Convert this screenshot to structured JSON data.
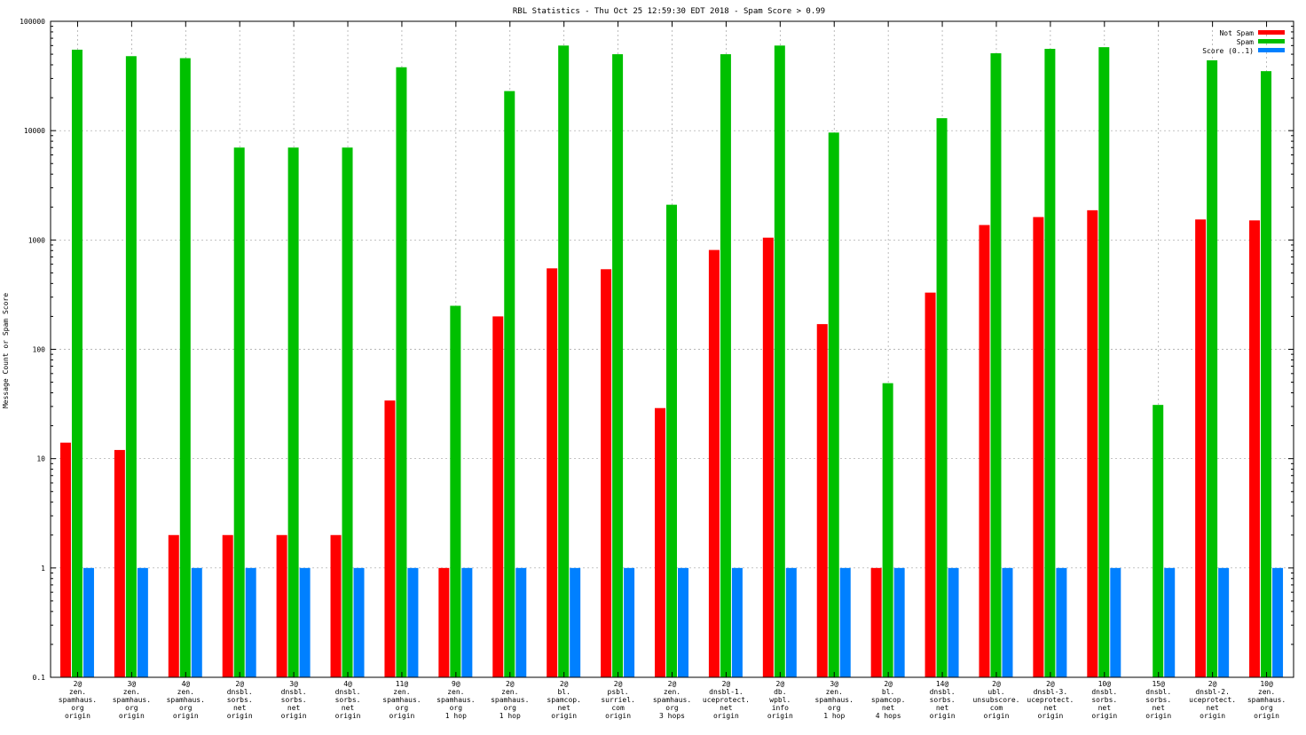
{
  "chart_data": {
    "type": "bar",
    "title": "RBL Statistics - Thu Oct 25 12:59:30 EDT 2018 - Spam Score > 0.99",
    "xlabel": "",
    "ylabel": "Message Count or Spam Score",
    "yscale": "log",
    "ylim": [
      0.1,
      100000
    ],
    "yticks": [
      0.1,
      1,
      10,
      100,
      1000,
      10000,
      100000
    ],
    "ytick_labels": [
      "0.1",
      "1",
      "10",
      "100",
      "1000",
      "10000",
      "100000"
    ],
    "grid": true,
    "legend_position": "top-right",
    "categories": [
      [
        "2@",
        "zen.",
        "spamhaus.",
        "org",
        "origin"
      ],
      [
        "3@",
        "zen.",
        "spamhaus.",
        "org",
        "origin"
      ],
      [
        "4@",
        "zen.",
        "spamhaus.",
        "org",
        "origin"
      ],
      [
        "2@",
        "dnsbl.",
        "sorbs.",
        "net",
        "origin"
      ],
      [
        "3@",
        "dnsbl.",
        "sorbs.",
        "net",
        "origin"
      ],
      [
        "4@",
        "dnsbl.",
        "sorbs.",
        "net",
        "origin"
      ],
      [
        "11@",
        "zen.",
        "spamhaus.",
        "org",
        "origin"
      ],
      [
        "9@",
        "zen.",
        "spamhaus.",
        "org",
        "1 hop"
      ],
      [
        "2@",
        "zen.",
        "spamhaus.",
        "org",
        "1 hop"
      ],
      [
        "2@",
        "bl.",
        "spamcop.",
        "net",
        "origin"
      ],
      [
        "2@",
        "psbl.",
        "surriel.",
        "com",
        "origin"
      ],
      [
        "2@",
        "zen.",
        "spamhaus.",
        "org",
        "3 hops"
      ],
      [
        "2@",
        "dnsbl-1.",
        "uceprotect.",
        "net",
        "origin"
      ],
      [
        "2@",
        "db.",
        "wpbl.",
        "info",
        "origin"
      ],
      [
        "3@",
        "zen.",
        "spamhaus.",
        "org",
        "1 hop"
      ],
      [
        "2@",
        "bl.",
        "spamcop.",
        "net",
        "4 hops"
      ],
      [
        "14@",
        "dnsbl.",
        "sorbs.",
        "net",
        "origin"
      ],
      [
        "2@",
        "ubl.",
        "unsubscore.",
        "com",
        "origin"
      ],
      [
        "2@",
        "dnsbl-3.",
        "uceprotect.",
        "net",
        "origin"
      ],
      [
        "10@",
        "dnsbl.",
        "sorbs.",
        "net",
        "origin"
      ],
      [
        "15@",
        "dnsbl.",
        "sorbs.",
        "net",
        "origin"
      ],
      [
        "2@",
        "dnsbl-2.",
        "uceprotect.",
        "net",
        "origin"
      ],
      [
        "10@",
        "zen.",
        "spamhaus.",
        "org",
        "origin"
      ]
    ],
    "series": [
      {
        "name": "Not Spam",
        "color": "#ff0000",
        "values": [
          14,
          12,
          2,
          2,
          2,
          2,
          34,
          1,
          200,
          550,
          540,
          29,
          810,
          1050,
          170,
          1,
          330,
          1370,
          1620,
          1870,
          null,
          1540,
          1510
        ]
      },
      {
        "name": "Spam",
        "color": "#00c000",
        "values": [
          55000,
          48000,
          46000,
          7000,
          7000,
          7000,
          38000,
          250,
          23000,
          60000,
          50000,
          2100,
          50000,
          60000,
          9600,
          49,
          13000,
          51000,
          56000,
          58000,
          31,
          44000,
          35000
        ]
      },
      {
        "name": "Score (0..1)",
        "color": "#0080ff",
        "values": [
          1,
          1,
          1,
          1,
          1,
          1,
          1,
          1,
          1,
          1,
          1,
          1,
          1,
          1,
          1,
          1,
          1,
          1,
          1,
          1,
          1,
          1,
          1
        ]
      }
    ]
  }
}
